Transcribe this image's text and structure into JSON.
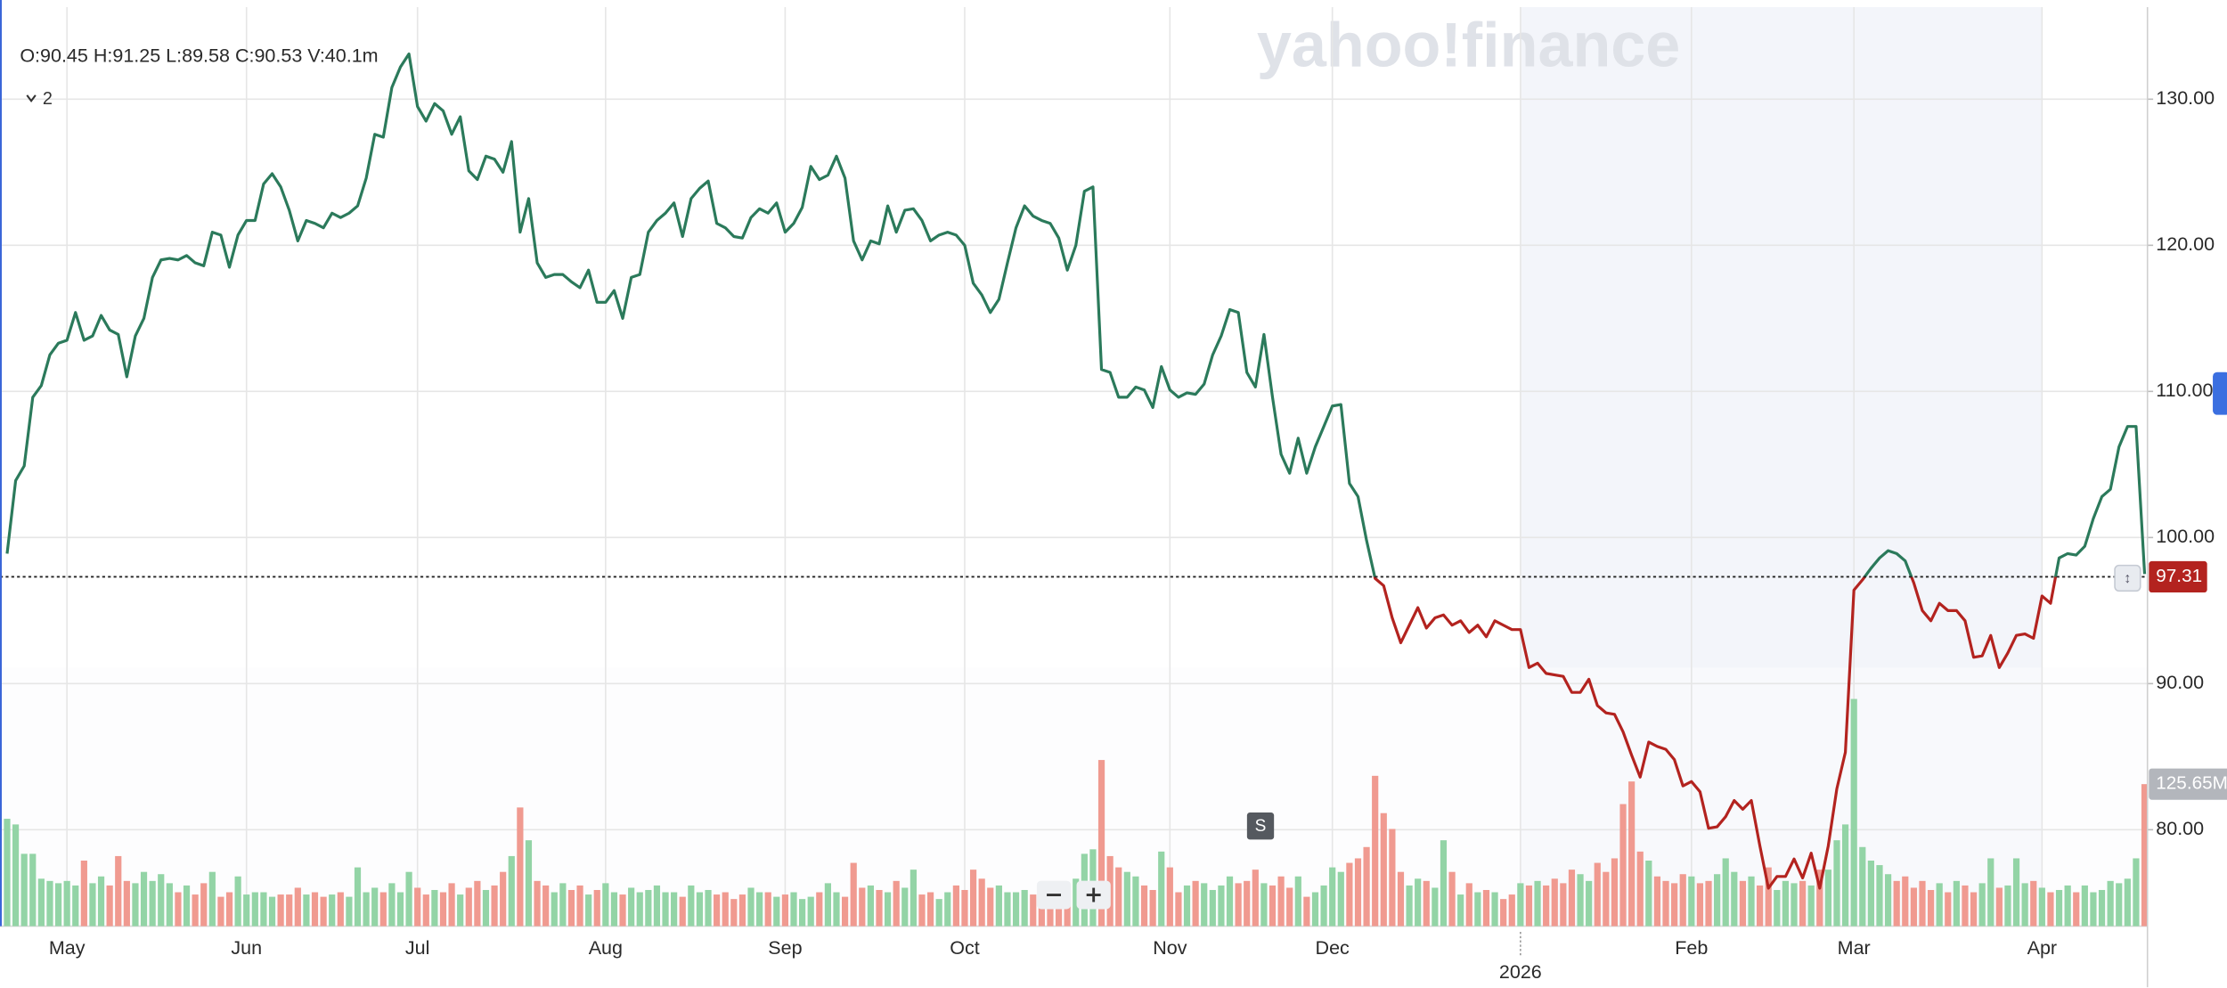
{
  "chart_data": {
    "type": "line",
    "header": "O:90.45 H:91.25 L:89.58 C:90.53 V:40.1m",
    "indicator_count": 2,
    "watermark": "yahoo!finance",
    "event_marker": "S",
    "categories": [
      null,
      null,
      null,
      null,
      null,
      null,
      null,
      "May",
      null,
      null,
      null,
      null,
      null,
      null,
      null,
      null,
      null,
      null,
      null,
      null,
      null,
      null,
      null,
      null,
      null,
      null,
      null,
      null,
      "Jun",
      null,
      null,
      null,
      null,
      null,
      null,
      null,
      null,
      null,
      null,
      null,
      null,
      null,
      null,
      null,
      null,
      null,
      null,
      null,
      "Jul",
      null,
      null,
      null,
      null,
      null,
      null,
      null,
      null,
      null,
      null,
      null,
      null,
      null,
      null,
      null,
      null,
      null,
      null,
      null,
      null,
      null,
      "Aug",
      null,
      null,
      null,
      null,
      null,
      null,
      null,
      null,
      null,
      null,
      null,
      null,
      null,
      null,
      null,
      null,
      null,
      null,
      null,
      null,
      "Sep",
      null,
      null,
      null,
      null,
      null,
      null,
      null,
      null,
      null,
      null,
      null,
      null,
      null,
      null,
      null,
      null,
      null,
      null,
      null,
      null,
      "Oct",
      null,
      null,
      null,
      null,
      null,
      null,
      null,
      null,
      null,
      null,
      null,
      null,
      null,
      null,
      null,
      null,
      null,
      null,
      null,
      null,
      null,
      null,
      null,
      "Nov",
      null,
      null,
      null,
      null,
      null,
      null,
      null,
      null,
      null,
      null,
      null,
      null,
      null,
      null,
      null,
      null,
      null,
      null,
      "Dec",
      null,
      null,
      null,
      null,
      null,
      null,
      null,
      null,
      null,
      null,
      null,
      null,
      null,
      null,
      null,
      null,
      null,
      null,
      null,
      null,
      null,
      "2026",
      null,
      null,
      null,
      null,
      null,
      null,
      null,
      null,
      null,
      null,
      null,
      null,
      null,
      null,
      null,
      null,
      null,
      null,
      null,
      "Feb",
      null,
      null,
      null,
      null,
      null,
      null,
      null,
      null,
      null,
      null,
      null,
      null,
      null,
      null,
      null,
      null,
      null,
      null,
      "Mar",
      null,
      null,
      null,
      null,
      null,
      null,
      null,
      null,
      null,
      null,
      null,
      null,
      null,
      null,
      null,
      null,
      null,
      null,
      null,
      null,
      null,
      "Apr",
      null,
      null,
      null,
      null,
      null,
      null,
      null,
      null,
      null,
      null,
      null,
      null
    ],
    "series": [
      {
        "color": "#2b7a5b",
        "below_color": "#b3231f",
        "values": [
          98.9,
          103.9,
          104.9,
          109.6,
          110.4,
          112.5,
          113.3,
          113.5,
          115.4,
          113.5,
          113.8,
          115.2,
          114.2,
          113.9,
          111.0,
          113.8,
          115.0,
          117.8,
          119.0,
          119.1,
          119.0,
          119.3,
          118.8,
          118.6,
          120.9,
          120.7,
          118.5,
          120.7,
          121.7,
          121.7,
          124.2,
          124.9,
          124.0,
          122.4,
          120.3,
          121.7,
          121.5,
          121.2,
          122.2,
          121.9,
          122.2,
          122.7,
          124.6,
          127.6,
          127.4,
          130.8,
          132.2,
          133.1,
          129.5,
          128.5,
          129.7,
          129.2,
          127.6,
          128.8,
          125.1,
          124.5,
          126.1,
          125.9,
          125.0,
          127.1,
          120.9,
          123.2,
          118.8,
          117.8,
          118.0,
          118.0,
          117.5,
          117.1,
          118.3,
          116.1,
          116.1,
          116.9,
          115.0,
          117.8,
          118.0,
          120.9,
          121.7,
          122.2,
          122.9,
          120.6,
          123.2,
          123.9,
          124.4,
          121.5,
          121.2,
          120.6,
          120.5,
          121.9,
          122.5,
          122.2,
          122.9,
          120.9,
          121.5,
          122.6,
          125.4,
          124.5,
          124.8,
          126.1,
          124.6,
          120.3,
          119.0,
          120.3,
          120.1,
          122.7,
          120.9,
          122.4,
          122.5,
          121.7,
          120.3,
          120.7,
          120.9,
          120.7,
          120.0,
          117.4,
          116.6,
          115.4,
          116.3,
          118.8,
          121.2,
          122.7,
          122.0,
          121.7,
          121.5,
          120.5,
          118.3,
          120.0,
          123.7,
          124.0,
          111.5,
          111.3,
          109.6,
          109.6,
          110.3,
          110.1,
          108.9,
          111.7,
          110.1,
          109.6,
          109.9,
          109.8,
          110.5,
          112.5,
          113.8,
          115.6,
          115.4,
          111.3,
          110.3,
          113.9,
          109.6,
          105.7,
          104.4,
          106.8,
          104.4,
          106.2,
          107.6,
          109.0,
          109.1,
          103.7,
          102.8,
          99.8,
          97.2,
          96.7,
          94.5,
          92.8,
          94.0,
          95.2,
          93.8,
          94.5,
          94.7,
          94.0,
          94.3,
          93.5,
          94.0,
          93.2,
          94.3,
          94.0,
          93.7,
          93.7,
          91.1,
          91.4,
          90.7,
          90.6,
          90.5,
          89.4,
          89.4,
          90.3,
          88.5,
          88.0,
          87.9,
          86.7,
          85.1,
          83.6,
          86.0,
          85.7,
          85.5,
          84.8,
          83.0,
          83.3,
          82.6,
          80.1,
          80.2,
          80.9,
          82.0,
          81.4,
          82.0,
          78.9,
          76.0,
          76.8,
          76.8,
          78.0,
          76.7,
          78.4,
          76.0,
          78.9,
          82.8,
          85.3,
          96.4,
          97.1,
          97.9,
          98.6,
          99.1,
          98.9,
          98.4,
          96.9,
          95.0,
          94.3,
          95.5,
          95.0,
          95.0,
          94.3,
          91.8,
          91.9,
          93.3,
          91.1,
          92.1,
          93.3,
          93.4,
          93.1,
          96.0,
          95.5,
          98.6,
          98.9,
          98.8,
          99.4,
          101.3,
          102.8,
          103.3,
          106.2,
          107.6,
          107.6,
          97.5
        ]
      },
      {
        "type": "bar",
        "axis": "y2",
        "up_color": "#93d4a6",
        "down_color": "#f09a90",
        "values": [
          95,
          90,
          64,
          64,
          42,
          40,
          38,
          40,
          36,
          58,
          38,
          44,
          36,
          62,
          40,
          38,
          48,
          40,
          46,
          38,
          30,
          36,
          28,
          38,
          48,
          26,
          30,
          44,
          28,
          30,
          30,
          26,
          28,
          28,
          34,
          28,
          30,
          26,
          28,
          30,
          26,
          52,
          30,
          34,
          30,
          38,
          30,
          48,
          34,
          28,
          32,
          30,
          38,
          28,
          34,
          40,
          32,
          36,
          48,
          62,
          105,
          76,
          40,
          36,
          30,
          38,
          32,
          36,
          28,
          32,
          38,
          30,
          28,
          34,
          30,
          32,
          36,
          30,
          30,
          26,
          36,
          30,
          32,
          28,
          30,
          24,
          28,
          34,
          30,
          30,
          26,
          28,
          30,
          24,
          26,
          30,
          38,
          30,
          26,
          56,
          34,
          36,
          32,
          30,
          40,
          34,
          50,
          28,
          30,
          24,
          30,
          36,
          32,
          50,
          42,
          34,
          36,
          30,
          30,
          32,
          28,
          36,
          30,
          38,
          36,
          42,
          64,
          68,
          147,
          62,
          52,
          48,
          44,
          36,
          32,
          66,
          52,
          30,
          36,
          40,
          38,
          32,
          36,
          44,
          38,
          40,
          50,
          38,
          36,
          44,
          34,
          44,
          26,
          30,
          36,
          52,
          48,
          56,
          60,
          70,
          133,
          100,
          86,
          48,
          36,
          42,
          40,
          34,
          76,
          48,
          28,
          38,
          30,
          32,
          30,
          24,
          28,
          38,
          36,
          40,
          36,
          42,
          38,
          50,
          46,
          40,
          56,
          48,
          60,
          108,
          128,
          66,
          58,
          44,
          40,
          38,
          46,
          44,
          38,
          40,
          46,
          60,
          48,
          40,
          44,
          36,
          52,
          32,
          40,
          38,
          40,
          36,
          50,
          50,
          76,
          90,
          201,
          70,
          58,
          54,
          46,
          40,
          44,
          34,
          40,
          32,
          38,
          30,
          40,
          36,
          30,
          38,
          60,
          34,
          36,
          60,
          38,
          40,
          34,
          30,
          32,
          36,
          30,
          36,
          30,
          32,
          40,
          38,
          42,
          60,
          125.65
        ],
        "value_labels": [
          null,
          null,
          null,
          null,
          null,
          null,
          null,
          null,
          null,
          null,
          null,
          null,
          null,
          null,
          null,
          null,
          null,
          null,
          null,
          null,
          null,
          null,
          null,
          null,
          null,
          null,
          null,
          null,
          null,
          null,
          null,
          null,
          null,
          null,
          null,
          null,
          null,
          null,
          null,
          null,
          null,
          null,
          null,
          null,
          null,
          null,
          null,
          null,
          null,
          null,
          null,
          null,
          null,
          null,
          null,
          null,
          null,
          null,
          null,
          null,
          null,
          null,
          null,
          null,
          null,
          null,
          null,
          null,
          null,
          null,
          null,
          null,
          null,
          null,
          null,
          null,
          null,
          null,
          null,
          null,
          null,
          null,
          null,
          null,
          null,
          null,
          null,
          null,
          null,
          null,
          null,
          null,
          null,
          null,
          null,
          null,
          null,
          null,
          null,
          null,
          null,
          null,
          null,
          null,
          null,
          null,
          null,
          null,
          null,
          null,
          null,
          null,
          null,
          null,
          null,
          null,
          null,
          null,
          null,
          null,
          null,
          null,
          null,
          null,
          null,
          null,
          null,
          null,
          null,
          null,
          null,
          null,
          null,
          null,
          null,
          null,
          null,
          null,
          null,
          null,
          null,
          null,
          null,
          null,
          null,
          null,
          null,
          null,
          null,
          null,
          null,
          null,
          null,
          null,
          null,
          null,
          null,
          null,
          null,
          null,
          null,
          null,
          null,
          null,
          null,
          null,
          null,
          null,
          null,
          null,
          null,
          null,
          null,
          null,
          null,
          null,
          null,
          null,
          null,
          null,
          null,
          null,
          null,
          null,
          null,
          null,
          null,
          null,
          null,
          null,
          null,
          null,
          null,
          null,
          null,
          null,
          null,
          null,
          null,
          null,
          null,
          null,
          null,
          null,
          null,
          null,
          null,
          null,
          null,
          null,
          null,
          null,
          null,
          null,
          null,
          null,
          null,
          null,
          null,
          null,
          null,
          null,
          null,
          null,
          null,
          null,
          null,
          null,
          null,
          null,
          null,
          null,
          null,
          null,
          null,
          null,
          null,
          null,
          null,
          null,
          null,
          null,
          null,
          null,
          null,
          null,
          null,
          null,
          null,
          null,
          "125.65M"
        ]
      }
    ],
    "reference_line": 97.31,
    "ylim": [
      73.4,
      136.3
    ],
    "yticks": [
      {
        "value": 80,
        "label": "80.00"
      },
      {
        "value": 90,
        "label": "90.00"
      },
      {
        "value": 100,
        "label": "100.00"
      },
      {
        "value": 110,
        "label": "110.00"
      },
      {
        "value": 120,
        "label": "120.00"
      },
      {
        "value": 130,
        "label": "130.00"
      }
    ],
    "y2lim": [
      0,
      813
    ],
    "grid": true
  }
}
